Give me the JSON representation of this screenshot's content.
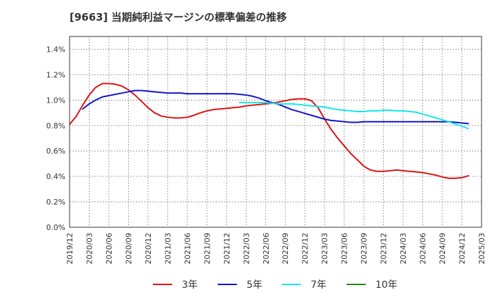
{
  "chart_data": {
    "type": "line",
    "title": "[9663]  当期純利益マージンの標準偏差の推移",
    "xlabel": "",
    "ylabel": "",
    "ylim": [
      0,
      1.5
    ],
    "y_ticks": [
      0,
      0.2,
      0.4,
      0.6,
      0.8,
      1.0,
      1.2,
      1.4
    ],
    "y_tick_labels": [
      "0.0%",
      "0.2%",
      "0.4%",
      "0.6%",
      "0.8%",
      "1.0%",
      "1.2%",
      "1.4%"
    ],
    "x_tick_labels": [
      "2019/12",
      "2020/03",
      "2020/06",
      "2020/09",
      "2020/12",
      "2021/03",
      "2021/06",
      "2021/09",
      "2021/12",
      "2022/03",
      "2022/06",
      "2022/09",
      "2022/12",
      "2023/03",
      "2023/06",
      "2023/09",
      "2023/12",
      "2024/03",
      "2024/06",
      "2024/09",
      "2024/12",
      "2025/03"
    ],
    "grid": true,
    "legend_position": "bottom",
    "series": [
      {
        "name": "3年",
        "color": "#dd1111",
        "points": [
          [
            0,
            0.81
          ],
          [
            0.33,
            0.87
          ],
          [
            0.67,
            0.96
          ],
          [
            1,
            1.04
          ],
          [
            1.33,
            1.1
          ],
          [
            1.67,
            1.13
          ],
          [
            2,
            1.13
          ],
          [
            2.33,
            1.125
          ],
          [
            2.67,
            1.11
          ],
          [
            3,
            1.08
          ],
          [
            3.33,
            1.04
          ],
          [
            3.67,
            0.99
          ],
          [
            4,
            0.94
          ],
          [
            4.33,
            0.9
          ],
          [
            4.67,
            0.875
          ],
          [
            5,
            0.865
          ],
          [
            5.33,
            0.86
          ],
          [
            5.67,
            0.86
          ],
          [
            6,
            0.865
          ],
          [
            6.33,
            0.88
          ],
          [
            6.67,
            0.9
          ],
          [
            7,
            0.915
          ],
          [
            7.33,
            0.925
          ],
          [
            7.67,
            0.93
          ],
          [
            8,
            0.935
          ],
          [
            8.33,
            0.94
          ],
          [
            8.67,
            0.945
          ],
          [
            9,
            0.955
          ],
          [
            9.33,
            0.96
          ],
          [
            9.67,
            0.965
          ],
          [
            10,
            0.97
          ],
          [
            10.33,
            0.975
          ],
          [
            10.67,
            0.985
          ],
          [
            11,
            0.995
          ],
          [
            11.33,
            1.005
          ],
          [
            11.67,
            1.01
          ],
          [
            12,
            1.01
          ],
          [
            12.33,
            0.995
          ],
          [
            12.67,
            0.94
          ],
          [
            13,
            0.85
          ],
          [
            13.33,
            0.77
          ],
          [
            13.67,
            0.7
          ],
          [
            14,
            0.64
          ],
          [
            14.33,
            0.58
          ],
          [
            14.67,
            0.53
          ],
          [
            15,
            0.48
          ],
          [
            15.33,
            0.45
          ],
          [
            15.67,
            0.44
          ],
          [
            16,
            0.44
          ],
          [
            16.33,
            0.445
          ],
          [
            16.67,
            0.45
          ],
          [
            17,
            0.445
          ],
          [
            17.33,
            0.44
          ],
          [
            17.67,
            0.435
          ],
          [
            18,
            0.43
          ],
          [
            18.33,
            0.42
          ],
          [
            18.67,
            0.41
          ],
          [
            19,
            0.395
          ],
          [
            19.33,
            0.385
          ],
          [
            19.67,
            0.385
          ],
          [
            20,
            0.39
          ],
          [
            20.33,
            0.405
          ]
        ]
      },
      {
        "name": "5年",
        "color": "#1111cc",
        "points": [
          [
            0.67,
            0.93
          ],
          [
            1,
            0.97
          ],
          [
            1.33,
            1.0
          ],
          [
            1.67,
            1.025
          ],
          [
            2,
            1.035
          ],
          [
            2.33,
            1.045
          ],
          [
            2.67,
            1.055
          ],
          [
            3,
            1.065
          ],
          [
            3.33,
            1.075
          ],
          [
            3.67,
            1.075
          ],
          [
            4,
            1.07
          ],
          [
            4.33,
            1.065
          ],
          [
            4.67,
            1.06
          ],
          [
            5,
            1.055
          ],
          [
            5.33,
            1.055
          ],
          [
            5.67,
            1.055
          ],
          [
            6,
            1.05
          ],
          [
            6.33,
            1.05
          ],
          [
            6.67,
            1.05
          ],
          [
            7,
            1.05
          ],
          [
            7.33,
            1.05
          ],
          [
            7.67,
            1.05
          ],
          [
            8,
            1.05
          ],
          [
            8.33,
            1.05
          ],
          [
            8.67,
            1.045
          ],
          [
            9,
            1.04
          ],
          [
            9.33,
            1.03
          ],
          [
            9.67,
            1.015
          ],
          [
            10,
            0.995
          ],
          [
            10.33,
            0.98
          ],
          [
            10.67,
            0.965
          ],
          [
            11,
            0.945
          ],
          [
            11.33,
            0.925
          ],
          [
            11.67,
            0.91
          ],
          [
            12,
            0.895
          ],
          [
            12.33,
            0.88
          ],
          [
            12.67,
            0.865
          ],
          [
            13,
            0.85
          ],
          [
            13.33,
            0.84
          ],
          [
            13.67,
            0.835
          ],
          [
            14,
            0.83
          ],
          [
            14.33,
            0.825
          ],
          [
            14.67,
            0.825
          ],
          [
            15,
            0.83
          ],
          [
            15.33,
            0.83
          ],
          [
            15.67,
            0.83
          ],
          [
            16,
            0.83
          ],
          [
            16.33,
            0.83
          ],
          [
            16.67,
            0.83
          ],
          [
            17,
            0.83
          ],
          [
            17.33,
            0.83
          ],
          [
            17.67,
            0.83
          ],
          [
            18,
            0.83
          ],
          [
            18.33,
            0.83
          ],
          [
            18.67,
            0.83
          ],
          [
            19,
            0.83
          ],
          [
            19.33,
            0.83
          ],
          [
            19.67,
            0.825
          ],
          [
            20,
            0.82
          ],
          [
            20.33,
            0.815
          ]
        ]
      },
      {
        "name": "7年",
        "color": "#11e8e8",
        "points": [
          [
            8.67,
            0.98
          ],
          [
            9,
            0.98
          ],
          [
            9.33,
            0.98
          ],
          [
            9.67,
            0.98
          ],
          [
            10,
            0.98
          ],
          [
            10.33,
            0.975
          ],
          [
            10.67,
            0.97
          ],
          [
            11,
            0.97
          ],
          [
            11.33,
            0.97
          ],
          [
            11.67,
            0.965
          ],
          [
            12,
            0.96
          ],
          [
            12.33,
            0.955
          ],
          [
            12.67,
            0.95
          ],
          [
            13,
            0.945
          ],
          [
            13.33,
            0.935
          ],
          [
            13.67,
            0.925
          ],
          [
            14,
            0.92
          ],
          [
            14.33,
            0.915
          ],
          [
            14.67,
            0.91
          ],
          [
            15,
            0.91
          ],
          [
            15.33,
            0.915
          ],
          [
            15.67,
            0.915
          ],
          [
            16,
            0.92
          ],
          [
            16.33,
            0.92
          ],
          [
            16.67,
            0.915
          ],
          [
            17,
            0.915
          ],
          [
            17.33,
            0.91
          ],
          [
            17.67,
            0.905
          ],
          [
            18,
            0.89
          ],
          [
            18.33,
            0.875
          ],
          [
            18.67,
            0.86
          ],
          [
            19,
            0.845
          ],
          [
            19.33,
            0.83
          ],
          [
            19.67,
            0.81
          ],
          [
            20,
            0.795
          ],
          [
            20.33,
            0.775
          ]
        ]
      },
      {
        "name": "10年",
        "color": "#228822",
        "points": []
      }
    ]
  }
}
